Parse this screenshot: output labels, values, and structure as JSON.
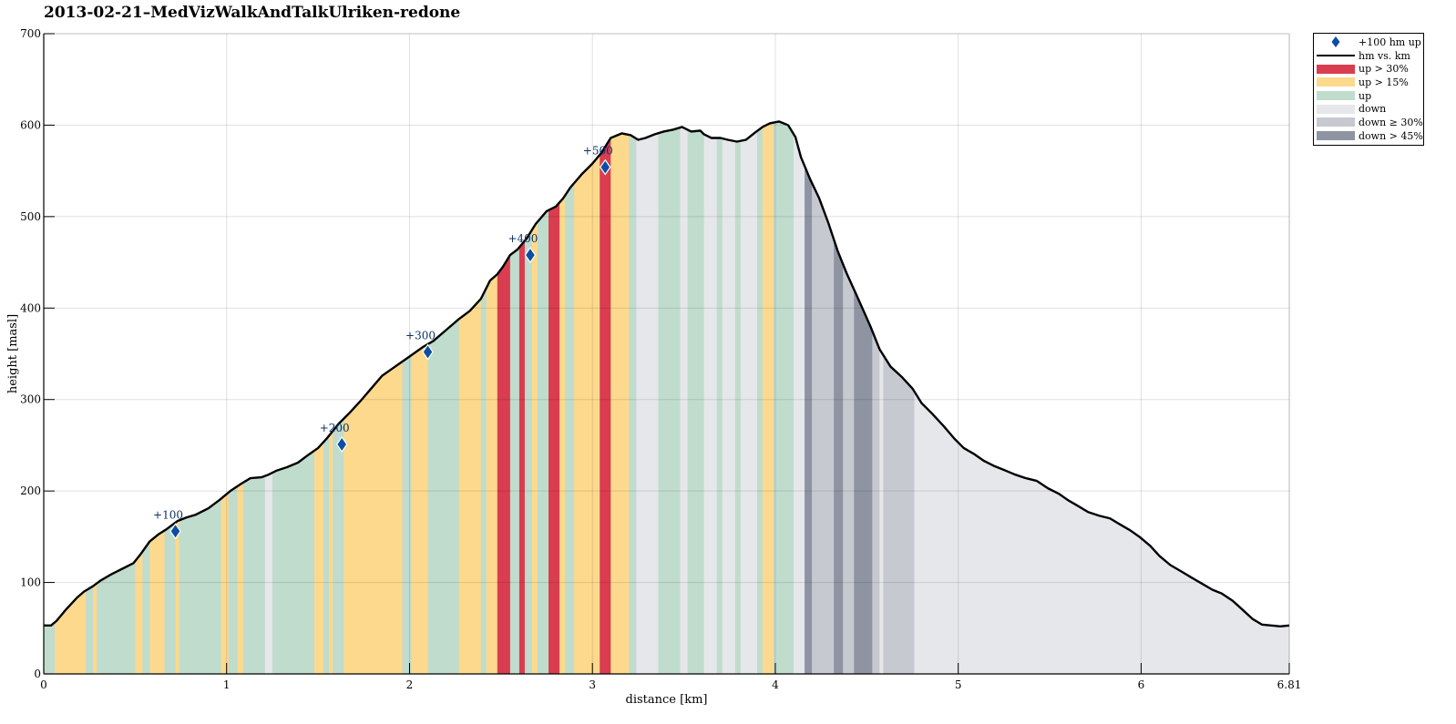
{
  "chart_data": {
    "type": "area",
    "title": "2013-02-21–MedVizWalkAndTalkUlriken-redone",
    "xlabel": "distance [km]",
    "ylabel": "height [masl]",
    "xlim": [
      0,
      6.81
    ],
    "ylim": [
      0,
      700
    ],
    "xticks": [
      0,
      1,
      2,
      3,
      4,
      5,
      6,
      6.81
    ],
    "xtick_labels": [
      "0",
      "1",
      "2",
      "3",
      "4",
      "5",
      "6",
      "6.81"
    ],
    "yticks": [
      0,
      100,
      200,
      300,
      400,
      500,
      600,
      700
    ],
    "ytick_labels": [
      "0",
      "100",
      "200",
      "300",
      "400",
      "500",
      "600",
      "700"
    ],
    "grid": true,
    "legend_position": "outside-top-right",
    "legend": [
      {
        "label": "+100 hm up",
        "kind": "marker",
        "color": "#0b4ea2"
      },
      {
        "label": "hm vs. km",
        "kind": "line",
        "color": "#000000"
      },
      {
        "label": "up > 30%",
        "kind": "patch",
        "color": "#d93d4f"
      },
      {
        "label": "up > 15%",
        "kind": "patch",
        "color": "#fdd98d"
      },
      {
        "label": "up",
        "kind": "patch",
        "color": "#c0dccd"
      },
      {
        "label": "down",
        "kind": "patch",
        "color": "#e6e7eb"
      },
      {
        "label": "down ≥ 30%",
        "kind": "patch",
        "color": "#c7c9d1"
      },
      {
        "label": "down > 45%",
        "kind": "patch",
        "color": "#8e94a1"
      }
    ],
    "category_colors": {
      "up30": "#d93d4f",
      "up15": "#fdd98d",
      "up": "#c0dccd",
      "down": "#e6e7eb",
      "down30": "#c7c9d1",
      "down45": "#8e94a1"
    },
    "profile": {
      "x": [
        0,
        0.04,
        0.07,
        0.12,
        0.18,
        0.22,
        0.27,
        0.31,
        0.37,
        0.43,
        0.49,
        0.53,
        0.58,
        0.63,
        0.67,
        0.73,
        0.78,
        0.83,
        0.9,
        0.96,
        1.02,
        1.08,
        1.13,
        1.19,
        1.23,
        1.27,
        1.33,
        1.39,
        1.45,
        1.5,
        1.55,
        1.61,
        1.67,
        1.73,
        1.79,
        1.85,
        1.9,
        1.95,
        2.0,
        2.07,
        2.13,
        2.2,
        2.27,
        2.33,
        2.39,
        2.44,
        2.48,
        2.51,
        2.55,
        2.59,
        2.64,
        2.69,
        2.75,
        2.8,
        2.84,
        2.88,
        2.94,
        3.0,
        3.05,
        3.1,
        3.16,
        3.21,
        3.25,
        3.29,
        3.34,
        3.39,
        3.44,
        3.49,
        3.54,
        3.59,
        3.61,
        3.65,
        3.7,
        3.74,
        3.79,
        3.84,
        3.89,
        3.93,
        3.97,
        4.02,
        4.07,
        4.11,
        4.14,
        4.19,
        4.24,
        4.29,
        4.34,
        4.39,
        4.44,
        4.48,
        4.52,
        4.57,
        4.63,
        4.69,
        4.75,
        4.8,
        4.86,
        4.92,
        4.98,
        5.03,
        5.09,
        5.14,
        5.2,
        5.25,
        5.31,
        5.37,
        5.43,
        5.49,
        5.55,
        5.6,
        5.66,
        5.71,
        5.77,
        5.83,
        5.88,
        5.94,
        5.99,
        6.05,
        6.1,
        6.16,
        6.22,
        6.27,
        6.33,
        6.39,
        6.44,
        6.5,
        6.55,
        6.61,
        6.66,
        6.71,
        6.76,
        6.81
      ],
      "y": [
        53,
        53,
        58,
        70,
        83,
        90,
        96,
        102,
        109,
        115,
        121,
        131,
        145,
        153,
        158,
        167,
        171,
        174,
        181,
        190,
        200,
        208,
        214,
        215,
        218,
        222,
        226,
        231,
        240,
        247,
        258,
        273,
        285,
        298,
        312,
        326,
        333,
        340,
        347,
        357,
        364,
        376,
        388,
        397,
        410,
        430,
        437,
        445,
        458,
        464,
        476,
        492,
        506,
        511,
        520,
        532,
        546,
        558,
        570,
        586,
        591,
        589,
        584,
        586,
        590,
        593,
        595,
        598,
        593,
        594,
        590,
        586,
        586,
        584,
        582,
        584,
        592,
        598,
        602,
        604,
        600,
        587,
        565,
        541,
        520,
        493,
        463,
        438,
        416,
        398,
        380,
        355,
        336,
        325,
        312,
        296,
        284,
        271,
        257,
        247,
        240,
        233,
        227,
        223,
        218,
        214,
        211,
        203,
        197,
        190,
        183,
        177,
        173,
        170,
        164,
        157,
        150,
        140,
        129,
        119,
        112,
        106,
        99,
        92,
        88,
        80,
        71,
        60,
        54,
        53,
        52,
        53
      ]
    },
    "segments": [
      {
        "x0": 0.0,
        "x1": 0.06,
        "cat": "up"
      },
      {
        "x0": 0.06,
        "x1": 0.23,
        "cat": "up15"
      },
      {
        "x0": 0.23,
        "x1": 0.27,
        "cat": "up"
      },
      {
        "x0": 0.27,
        "x1": 0.29,
        "cat": "up15"
      },
      {
        "x0": 0.29,
        "x1": 0.5,
        "cat": "up"
      },
      {
        "x0": 0.5,
        "x1": 0.54,
        "cat": "up15"
      },
      {
        "x0": 0.54,
        "x1": 0.58,
        "cat": "up"
      },
      {
        "x0": 0.58,
        "x1": 0.66,
        "cat": "up15"
      },
      {
        "x0": 0.66,
        "x1": 0.72,
        "cat": "up"
      },
      {
        "x0": 0.72,
        "x1": 0.74,
        "cat": "up15"
      },
      {
        "x0": 0.74,
        "x1": 0.97,
        "cat": "up"
      },
      {
        "x0": 0.97,
        "x1": 1.01,
        "cat": "up15"
      },
      {
        "x0": 1.01,
        "x1": 1.06,
        "cat": "up"
      },
      {
        "x0": 1.06,
        "x1": 1.09,
        "cat": "up15"
      },
      {
        "x0": 1.09,
        "x1": 1.21,
        "cat": "up"
      },
      {
        "x0": 1.21,
        "x1": 1.25,
        "cat": "down"
      },
      {
        "x0": 1.25,
        "x1": 1.48,
        "cat": "up"
      },
      {
        "x0": 1.48,
        "x1": 1.53,
        "cat": "up15"
      },
      {
        "x0": 1.53,
        "x1": 1.56,
        "cat": "up"
      },
      {
        "x0": 1.56,
        "x1": 1.58,
        "cat": "up15"
      },
      {
        "x0": 1.58,
        "x1": 1.64,
        "cat": "up"
      },
      {
        "x0": 1.64,
        "x1": 1.96,
        "cat": "up15"
      },
      {
        "x0": 1.96,
        "x1": 2.01,
        "cat": "up"
      },
      {
        "x0": 2.01,
        "x1": 2.1,
        "cat": "up15"
      },
      {
        "x0": 2.1,
        "x1": 2.27,
        "cat": "up"
      },
      {
        "x0": 2.27,
        "x1": 2.39,
        "cat": "up15"
      },
      {
        "x0": 2.39,
        "x1": 2.42,
        "cat": "up"
      },
      {
        "x0": 2.42,
        "x1": 2.48,
        "cat": "up15"
      },
      {
        "x0": 2.48,
        "x1": 2.55,
        "cat": "up30"
      },
      {
        "x0": 2.55,
        "x1": 2.6,
        "cat": "up"
      },
      {
        "x0": 2.6,
        "x1": 2.63,
        "cat": "up30"
      },
      {
        "x0": 2.63,
        "x1": 2.67,
        "cat": "up"
      },
      {
        "x0": 2.67,
        "x1": 2.7,
        "cat": "up15"
      },
      {
        "x0": 2.7,
        "x1": 2.76,
        "cat": "up"
      },
      {
        "x0": 2.76,
        "x1": 2.82,
        "cat": "up30"
      },
      {
        "x0": 2.82,
        "x1": 2.85,
        "cat": "up15"
      },
      {
        "x0": 2.85,
        "x1": 2.9,
        "cat": "up"
      },
      {
        "x0": 2.9,
        "x1": 3.04,
        "cat": "up15"
      },
      {
        "x0": 3.04,
        "x1": 3.1,
        "cat": "up30"
      },
      {
        "x0": 3.1,
        "x1": 3.2,
        "cat": "up15"
      },
      {
        "x0": 3.2,
        "x1": 3.24,
        "cat": "up"
      },
      {
        "x0": 3.24,
        "x1": 3.36,
        "cat": "down"
      },
      {
        "x0": 3.36,
        "x1": 3.48,
        "cat": "up"
      },
      {
        "x0": 3.48,
        "x1": 3.52,
        "cat": "down"
      },
      {
        "x0": 3.52,
        "x1": 3.61,
        "cat": "up"
      },
      {
        "x0": 3.61,
        "x1": 3.68,
        "cat": "down"
      },
      {
        "x0": 3.68,
        "x1": 3.71,
        "cat": "up"
      },
      {
        "x0": 3.71,
        "x1": 3.78,
        "cat": "down"
      },
      {
        "x0": 3.78,
        "x1": 3.81,
        "cat": "up"
      },
      {
        "x0": 3.81,
        "x1": 3.9,
        "cat": "down"
      },
      {
        "x0": 3.9,
        "x1": 3.93,
        "cat": "up"
      },
      {
        "x0": 3.93,
        "x1": 3.99,
        "cat": "up15"
      },
      {
        "x0": 3.99,
        "x1": 4.1,
        "cat": "up"
      },
      {
        "x0": 4.1,
        "x1": 4.16,
        "cat": "down"
      },
      {
        "x0": 4.16,
        "x1": 4.2,
        "cat": "down45"
      },
      {
        "x0": 4.2,
        "x1": 4.32,
        "cat": "down30"
      },
      {
        "x0": 4.32,
        "x1": 4.37,
        "cat": "down45"
      },
      {
        "x0": 4.37,
        "x1": 4.43,
        "cat": "down30"
      },
      {
        "x0": 4.43,
        "x1": 4.53,
        "cat": "down45"
      },
      {
        "x0": 4.53,
        "x1": 4.57,
        "cat": "down30"
      },
      {
        "x0": 4.57,
        "x1": 4.59,
        "cat": "down"
      },
      {
        "x0": 4.59,
        "x1": 4.76,
        "cat": "down30"
      },
      {
        "x0": 4.76,
        "x1": 6.81,
        "cat": "down"
      }
    ],
    "markers": [
      {
        "x": 0.72,
        "y": 156,
        "label": "+100"
      },
      {
        "x": 1.63,
        "y": 251,
        "label": "+200"
      },
      {
        "x": 2.1,
        "y": 352,
        "label": "+300"
      },
      {
        "x": 2.66,
        "y": 458,
        "label": "+400"
      },
      {
        "x": 3.07,
        "y": 554,
        "label": "+500"
      }
    ]
  }
}
